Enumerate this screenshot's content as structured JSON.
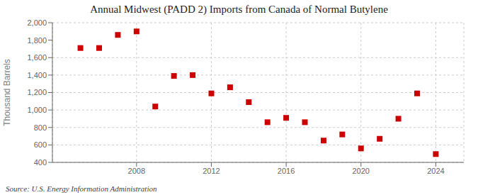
{
  "chart_data": {
    "type": "scatter",
    "title": "Annual Midwest (PADD 2) Imports from Canada of Normal Butylene",
    "ylabel": "Thousand Barrels",
    "annotations": [
      "Source: U.S. Energy Information Administration"
    ],
    "x": [
      2005,
      2006,
      2007,
      2008,
      2009,
      2010,
      2011,
      2012,
      2013,
      2014,
      2015,
      2016,
      2017,
      2018,
      2019,
      2020,
      2021,
      2022,
      2023,
      2024
    ],
    "values": [
      1710,
      1710,
      1860,
      1900,
      1040,
      1390,
      1400,
      1190,
      1260,
      1090,
      860,
      910,
      860,
      650,
      720,
      560,
      670,
      900,
      1190,
      495
    ],
    "color": "#cc0000",
    "marker": "square",
    "ylim": [
      400,
      2000
    ],
    "yticks": [
      400,
      600,
      800,
      {
        "value": 1000,
        "label": "1,000"
      },
      {
        "value": 1200,
        "label": "1,200"
      },
      {
        "value": 1400,
        "label": "1,400"
      },
      {
        "value": 1600,
        "label": "1,600"
      },
      {
        "value": 1800,
        "label": "1,800"
      },
      {
        "value": 2000,
        "label": "2,000"
      }
    ],
    "xlim": [
      2003.5,
      2025.5
    ],
    "xticks": [
      2008,
      2012,
      2016,
      2020,
      2024
    ],
    "grid": true
  }
}
